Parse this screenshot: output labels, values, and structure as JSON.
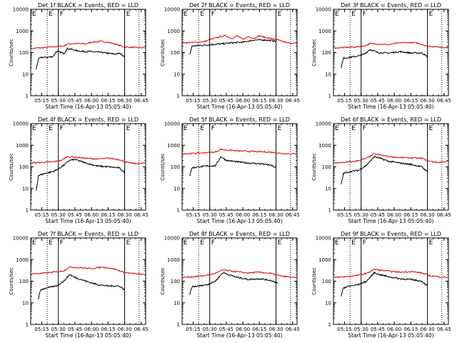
{
  "chart_data": {
    "type": "line",
    "time_units": "UT hh:mm",
    "x_tick_labels": [
      "05:15",
      "05:30",
      "05:45",
      "06:00",
      "06:15",
      "06:30",
      "06:45"
    ],
    "y_scale": "log",
    "y_tick_labels": [
      "1",
      "10",
      "100",
      "1000",
      "10000"
    ],
    "xlabel": "Start Time (16-Apr-13 05:05:40)",
    "ylabel": "Counts/sec",
    "grid": false,
    "x_range": [
      "05:05",
      "06:49"
    ],
    "y_range": [
      1,
      10000
    ],
    "series_colors": {
      "events": "#000000",
      "lld": "#e00000"
    },
    "marker_labels": {
      "start": "E",
      "flare": "F",
      "end": "E"
    },
    "vertical_lines": [
      {
        "time": "05:20",
        "style": "dotted"
      },
      {
        "time": "05:30",
        "style": "solid"
      },
      {
        "time": "06:30",
        "style": "solid"
      },
      {
        "time": "06:43",
        "style": "dotted"
      }
    ],
    "panels": [
      {
        "title": "Det 1f BLACK = Events, RED = LLD",
        "events": [
          {
            "t": "05:10",
            "v": 17
          },
          {
            "t": "05:12",
            "v": 50
          },
          {
            "t": "05:15",
            "v": 60
          },
          {
            "t": "05:20",
            "v": 60
          },
          {
            "t": "05:25",
            "v": 65
          },
          {
            "t": "05:28",
            "v": 110
          },
          {
            "t": "05:30",
            "v": 110
          },
          {
            "t": "05:35",
            "v": 90
          },
          {
            "t": "05:38",
            "v": 150
          },
          {
            "t": "05:42",
            "v": 140
          },
          {
            "t": "05:47",
            "v": 120
          },
          {
            "t": "05:55",
            "v": 110
          },
          {
            "t": "06:00",
            "v": 110
          },
          {
            "t": "06:10",
            "v": 100
          },
          {
            "t": "06:20",
            "v": 85
          },
          {
            "t": "06:26",
            "v": 90
          },
          {
            "t": "06:30",
            "v": 65
          }
        ],
        "lld": [
          {
            "t": "05:05",
            "v": 150
          },
          {
            "t": "05:10",
            "v": 160
          },
          {
            "t": "05:20",
            "v": 170
          },
          {
            "t": "05:30",
            "v": 195
          },
          {
            "t": "05:35",
            "v": 200
          },
          {
            "t": "05:38",
            "v": 250
          },
          {
            "t": "05:45",
            "v": 260
          },
          {
            "t": "05:55",
            "v": 250
          },
          {
            "t": "06:00",
            "v": 300
          },
          {
            "t": "06:10",
            "v": 330
          },
          {
            "t": "06:20",
            "v": 260
          },
          {
            "t": "06:30",
            "v": 180
          },
          {
            "t": "06:40",
            "v": 170
          },
          {
            "t": "06:49",
            "v": 165
          }
        ]
      },
      {
        "title": "Det 2f BLACK = Events, RED = LLD",
        "events": [
          {
            "t": "05:12",
            "v": 80
          },
          {
            "t": "05:14",
            "v": 200
          },
          {
            "t": "05:20",
            "v": 210
          },
          {
            "t": "05:30",
            "v": 230
          },
          {
            "t": "05:40",
            "v": 250
          },
          {
            "t": "05:50",
            "v": 280
          },
          {
            "t": "06:00",
            "v": 300
          },
          {
            "t": "06:10",
            "v": 380
          },
          {
            "t": "06:20",
            "v": 380
          },
          {
            "t": "06:28",
            "v": 350
          },
          {
            "t": "06:30",
            "v": 320
          }
        ],
        "lld": [
          {
            "t": "05:05",
            "v": 280
          },
          {
            "t": "05:15",
            "v": 290
          },
          {
            "t": "05:25",
            "v": 320
          },
          {
            "t": "05:32",
            "v": 420
          },
          {
            "t": "05:40",
            "v": 550
          },
          {
            "t": "05:44",
            "v": 600
          },
          {
            "t": "05:50",
            "v": 450
          },
          {
            "t": "05:55",
            "v": 600
          },
          {
            "t": "06:00",
            "v": 400
          },
          {
            "t": "06:05",
            "v": 550
          },
          {
            "t": "06:10",
            "v": 450
          },
          {
            "t": "06:15",
            "v": 600
          },
          {
            "t": "06:20",
            "v": 500
          },
          {
            "t": "06:30",
            "v": 400
          },
          {
            "t": "06:40",
            "v": 280
          },
          {
            "t": "06:49",
            "v": 260
          }
        ]
      },
      {
        "title": "Det 3f BLACK = Events, RED = LLD",
        "events": [
          {
            "t": "05:12",
            "v": 20
          },
          {
            "t": "05:14",
            "v": 55
          },
          {
            "t": "05:20",
            "v": 60
          },
          {
            "t": "05:28",
            "v": 70
          },
          {
            "t": "05:33",
            "v": 85
          },
          {
            "t": "05:38",
            "v": 140
          },
          {
            "t": "05:45",
            "v": 100
          },
          {
            "t": "05:55",
            "v": 95
          },
          {
            "t": "06:05",
            "v": 110
          },
          {
            "t": "06:15",
            "v": 95
          },
          {
            "t": "06:25",
            "v": 95
          },
          {
            "t": "06:30",
            "v": 65
          }
        ],
        "lld": [
          {
            "t": "05:05",
            "v": 160
          },
          {
            "t": "05:15",
            "v": 170
          },
          {
            "t": "05:25",
            "v": 180
          },
          {
            "t": "05:33",
            "v": 200
          },
          {
            "t": "05:38",
            "v": 260
          },
          {
            "t": "05:45",
            "v": 250
          },
          {
            "t": "05:55",
            "v": 230
          },
          {
            "t": "06:00",
            "v": 260
          },
          {
            "t": "06:10",
            "v": 290
          },
          {
            "t": "06:20",
            "v": 280
          },
          {
            "t": "06:30",
            "v": 200
          },
          {
            "t": "06:40",
            "v": 180
          },
          {
            "t": "06:49",
            "v": 170
          }
        ]
      },
      {
        "title": "Det 4f BLACK = Events, RED = LLD",
        "events": [
          {
            "t": "05:10",
            "v": 8
          },
          {
            "t": "05:12",
            "v": 40
          },
          {
            "t": "05:18",
            "v": 50
          },
          {
            "t": "05:25",
            "v": 60
          },
          {
            "t": "05:30",
            "v": 80
          },
          {
            "t": "05:35",
            "v": 120
          },
          {
            "t": "05:40",
            "v": 200
          },
          {
            "t": "05:45",
            "v": 220
          },
          {
            "t": "05:55",
            "v": 150
          },
          {
            "t": "06:05",
            "v": 110
          },
          {
            "t": "06:15",
            "v": 100
          },
          {
            "t": "06:25",
            "v": 90
          },
          {
            "t": "06:30",
            "v": 55
          }
        ],
        "lld": [
          {
            "t": "05:05",
            "v": 150
          },
          {
            "t": "05:15",
            "v": 160
          },
          {
            "t": "05:25",
            "v": 170
          },
          {
            "t": "05:33",
            "v": 200
          },
          {
            "t": "05:38",
            "v": 300
          },
          {
            "t": "05:45",
            "v": 280
          },
          {
            "t": "05:55",
            "v": 250
          },
          {
            "t": "06:05",
            "v": 230
          },
          {
            "t": "06:15",
            "v": 250
          },
          {
            "t": "06:25",
            "v": 220
          },
          {
            "t": "06:32",
            "v": 160
          },
          {
            "t": "06:40",
            "v": 140
          },
          {
            "t": "06:49",
            "v": 150
          }
        ]
      },
      {
        "title": "Det 5f BLACK = Events, RED = LLD",
        "events": [
          {
            "t": "05:12",
            "v": 40
          },
          {
            "t": "05:14",
            "v": 90
          },
          {
            "t": "05:20",
            "v": 100
          },
          {
            "t": "05:28",
            "v": 110
          },
          {
            "t": "05:35",
            "v": 110
          },
          {
            "t": "05:40",
            "v": 300
          },
          {
            "t": "05:45",
            "v": 200
          },
          {
            "t": "05:55",
            "v": 170
          },
          {
            "t": "06:05",
            "v": 150
          },
          {
            "t": "06:15",
            "v": 140
          },
          {
            "t": "06:25",
            "v": 120
          },
          {
            "t": "06:30",
            "v": 90
          }
        ],
        "lld": [
          {
            "t": "05:05",
            "v": 400
          },
          {
            "t": "05:15",
            "v": 420
          },
          {
            "t": "05:25",
            "v": 450
          },
          {
            "t": "05:35",
            "v": 480
          },
          {
            "t": "05:40",
            "v": 650
          },
          {
            "t": "05:45",
            "v": 600
          },
          {
            "t": "05:55",
            "v": 550
          },
          {
            "t": "06:05",
            "v": 520
          },
          {
            "t": "06:15",
            "v": 500
          },
          {
            "t": "06:25",
            "v": 480
          },
          {
            "t": "06:35",
            "v": 420
          },
          {
            "t": "06:45",
            "v": 400
          },
          {
            "t": "06:49",
            "v": 400
          }
        ]
      },
      {
        "title": "Det 6f BLACK = Events, RED = LLD",
        "events": [
          {
            "t": "05:12",
            "v": 15
          },
          {
            "t": "05:14",
            "v": 50
          },
          {
            "t": "05:20",
            "v": 60
          },
          {
            "t": "05:28",
            "v": 70
          },
          {
            "t": "05:35",
            "v": 120
          },
          {
            "t": "05:42",
            "v": 300
          },
          {
            "t": "05:47",
            "v": 250
          },
          {
            "t": "05:55",
            "v": 180
          },
          {
            "t": "06:05",
            "v": 150
          },
          {
            "t": "06:15",
            "v": 130
          },
          {
            "t": "06:25",
            "v": 100
          },
          {
            "t": "06:30",
            "v": 60
          }
        ],
        "lld": [
          {
            "t": "05:05",
            "v": 150
          },
          {
            "t": "05:15",
            "v": 160
          },
          {
            "t": "05:25",
            "v": 180
          },
          {
            "t": "05:35",
            "v": 250
          },
          {
            "t": "05:42",
            "v": 400
          },
          {
            "t": "05:48",
            "v": 350
          },
          {
            "t": "05:55",
            "v": 300
          },
          {
            "t": "06:05",
            "v": 270
          },
          {
            "t": "06:15",
            "v": 260
          },
          {
            "t": "06:25",
            "v": 250
          },
          {
            "t": "06:32",
            "v": 180
          },
          {
            "t": "06:40",
            "v": 160
          },
          {
            "t": "06:49",
            "v": 180
          }
        ]
      },
      {
        "title": "Det 7f BLACK = Events, RED = LLD",
        "events": [
          {
            "t": "05:12",
            "v": 15
          },
          {
            "t": "05:14",
            "v": 40
          },
          {
            "t": "05:20",
            "v": 50
          },
          {
            "t": "05:28",
            "v": 60
          },
          {
            "t": "05:35",
            "v": 100
          },
          {
            "t": "05:40",
            "v": 200
          },
          {
            "t": "05:45",
            "v": 150
          },
          {
            "t": "05:55",
            "v": 100
          },
          {
            "t": "06:05",
            "v": 70
          },
          {
            "t": "06:15",
            "v": 60
          },
          {
            "t": "06:25",
            "v": 60
          },
          {
            "t": "06:30",
            "v": 40
          }
        ],
        "lld": [
          {
            "t": "05:05",
            "v": 220
          },
          {
            "t": "05:15",
            "v": 230
          },
          {
            "t": "05:25",
            "v": 260
          },
          {
            "t": "05:35",
            "v": 300
          },
          {
            "t": "05:40",
            "v": 450
          },
          {
            "t": "05:50",
            "v": 420
          },
          {
            "t": "06:00",
            "v": 380
          },
          {
            "t": "06:10",
            "v": 450
          },
          {
            "t": "06:20",
            "v": 380
          },
          {
            "t": "06:30",
            "v": 250
          },
          {
            "t": "06:40",
            "v": 220
          },
          {
            "t": "06:49",
            "v": 200
          }
        ]
      },
      {
        "title": "Det 8f BLACK = Events, RED = LLD",
        "events": [
          {
            "t": "05:12",
            "v": 25
          },
          {
            "t": "05:14",
            "v": 55
          },
          {
            "t": "05:20",
            "v": 60
          },
          {
            "t": "05:28",
            "v": 70
          },
          {
            "t": "05:35",
            "v": 100
          },
          {
            "t": "05:42",
            "v": 250
          },
          {
            "t": "05:47",
            "v": 200
          },
          {
            "t": "05:55",
            "v": 150
          },
          {
            "t": "06:05",
            "v": 120
          },
          {
            "t": "06:15",
            "v": 130
          },
          {
            "t": "06:25",
            "v": 110
          },
          {
            "t": "06:32",
            "v": 80
          }
        ],
        "lld": [
          {
            "t": "05:05",
            "v": 150
          },
          {
            "t": "05:15",
            "v": 160
          },
          {
            "t": "05:25",
            "v": 180
          },
          {
            "t": "05:35",
            "v": 230
          },
          {
            "t": "05:42",
            "v": 330
          },
          {
            "t": "05:48",
            "v": 300
          },
          {
            "t": "05:55",
            "v": 270
          },
          {
            "t": "06:05",
            "v": 240
          },
          {
            "t": "06:15",
            "v": 260
          },
          {
            "t": "06:25",
            "v": 230
          },
          {
            "t": "06:35",
            "v": 170
          },
          {
            "t": "06:45",
            "v": 150
          },
          {
            "t": "06:49",
            "v": 140
          }
        ]
      },
      {
        "title": "Det 9f BLACK = Events, RED = LLD",
        "events": [
          {
            "t": "05:12",
            "v": 20
          },
          {
            "t": "05:14",
            "v": 50
          },
          {
            "t": "05:20",
            "v": 60
          },
          {
            "t": "05:28",
            "v": 70
          },
          {
            "t": "05:35",
            "v": 100
          },
          {
            "t": "05:42",
            "v": 250
          },
          {
            "t": "05:47",
            "v": 200
          },
          {
            "t": "05:55",
            "v": 160
          },
          {
            "t": "06:05",
            "v": 130
          },
          {
            "t": "06:15",
            "v": 120
          },
          {
            "t": "06:25",
            "v": 100
          },
          {
            "t": "06:30",
            "v": 60
          }
        ],
        "lld": [
          {
            "t": "05:05",
            "v": 150
          },
          {
            "t": "05:15",
            "v": 160
          },
          {
            "t": "05:25",
            "v": 180
          },
          {
            "t": "05:35",
            "v": 230
          },
          {
            "t": "05:42",
            "v": 350
          },
          {
            "t": "05:48",
            "v": 320
          },
          {
            "t": "05:55",
            "v": 290
          },
          {
            "t": "06:05",
            "v": 260
          },
          {
            "t": "06:15",
            "v": 280
          },
          {
            "t": "06:25",
            "v": 240
          },
          {
            "t": "06:32",
            "v": 180
          },
          {
            "t": "06:40",
            "v": 160
          },
          {
            "t": "06:49",
            "v": 150
          }
        ]
      }
    ]
  }
}
